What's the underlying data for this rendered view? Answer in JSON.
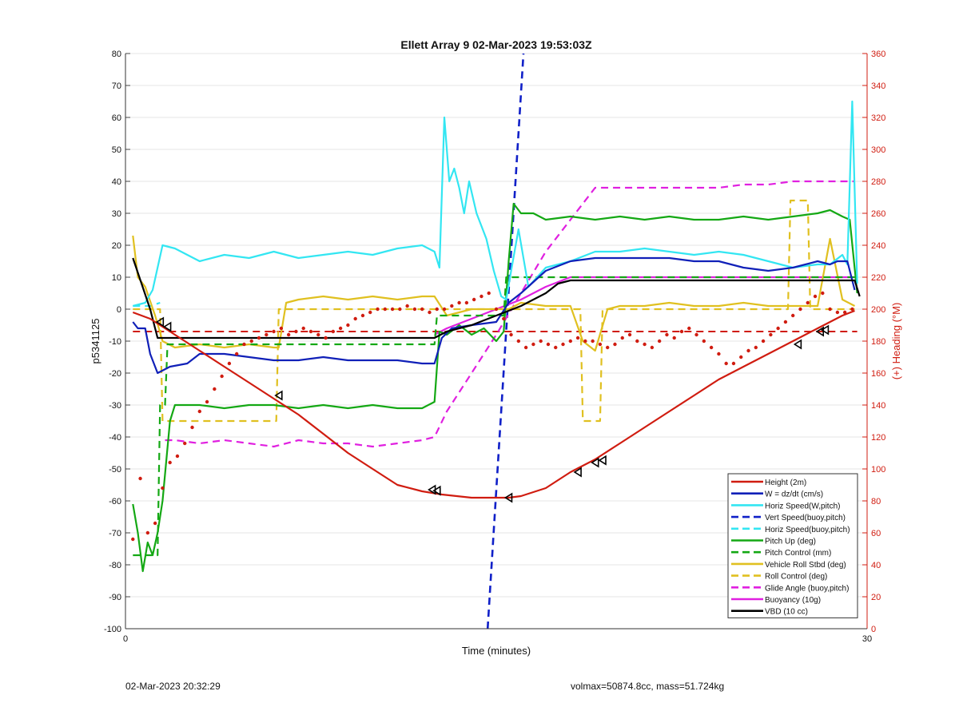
{
  "chart_data": {
    "type": "line",
    "title": "Ellett Array 9 02-Mar-2023 19:53:03Z",
    "xlabel": "Time (minutes)",
    "ylabel": "p5341125",
    "y2label": "(+) Heading (°M)",
    "xlim": [
      0,
      30
    ],
    "ylim": [
      -100,
      80
    ],
    "y2lim": [
      0,
      360
    ],
    "xticks": [
      "0",
      "30"
    ],
    "yticks": [
      "-100",
      "-90",
      "-80",
      "-70",
      "-60",
      "-50",
      "-40",
      "-30",
      "-20",
      "-10",
      "0",
      "10",
      "20",
      "30",
      "40",
      "50",
      "60",
      "70",
      "80"
    ],
    "y2ticks": [
      "0",
      "20",
      "40",
      "60",
      "80",
      "100",
      "120",
      "140",
      "160",
      "180",
      "200",
      "220",
      "240",
      "260",
      "280",
      "300",
      "320",
      "340",
      "360"
    ],
    "grid": true,
    "legend_position": "bottom-right",
    "colors": {
      "height": "#d01c10",
      "w": "#1020b8",
      "horiz_w": "#33e6f2",
      "vert_buoy": "#1020c8",
      "horiz_buoy": "#33e6f2",
      "pitch": "#14a814",
      "pitch_control": "#14a814",
      "roll": "#e0c020",
      "roll_control": "#e0c020",
      "glide": "#e020e0",
      "buoyancy": "#e020e0",
      "vbd": "#000000",
      "right_axis": "#d01c10"
    },
    "series": [
      {
        "name": "Height (2m)",
        "color": "#d01c10",
        "dash": false,
        "width": 2.2,
        "x": [
          0.3,
          1,
          2,
          3,
          4,
          5,
          6,
          7,
          8,
          9,
          10,
          11,
          12,
          12.8,
          14,
          15,
          15.5,
          16,
          17,
          18,
          19,
          20,
          21,
          22,
          23,
          24,
          25,
          26,
          27,
          28,
          29,
          29.5
        ],
        "y": [
          -1,
          -3,
          -8,
          -13,
          -18,
          -23,
          -28,
          -33,
          -39,
          -45,
          -50,
          -55,
          -57,
          -58,
          -59,
          -59,
          -59,
          -58.5,
          -56,
          -51,
          -47,
          -42,
          -37,
          -32,
          -27,
          -22,
          -18,
          -14,
          -10,
          -6,
          -2,
          -0.5
        ]
      },
      {
        "name": "W = dz/dt (cm/s)",
        "color": "#1020b8",
        "dash": false,
        "width": 2.2,
        "x": [
          0.3,
          0.5,
          0.8,
          1,
          1.3,
          1.8,
          2.5,
          3,
          4,
          5,
          6,
          7,
          8,
          9,
          10,
          11,
          12,
          12.5,
          12.8,
          13.2,
          14,
          15,
          15.5,
          16,
          17,
          18,
          19,
          20,
          21,
          22,
          23,
          24,
          25,
          26,
          27,
          28,
          28.5,
          28.8,
          29.2,
          29.5
        ],
        "y": [
          -4,
          -6,
          -6,
          -14,
          -20,
          -18,
          -17,
          -14,
          -14,
          -15,
          -16,
          -16,
          -15,
          -16,
          -16,
          -16,
          -17,
          -17,
          -9,
          -6,
          -5,
          -4,
          2,
          5,
          12,
          15,
          16,
          16,
          16,
          16,
          15,
          15,
          13,
          12,
          13,
          15,
          14,
          15,
          15,
          6
        ]
      },
      {
        "name": "Horiz Speed(W,pitch)",
        "color": "#33e6f2",
        "dash": false,
        "width": 2.2,
        "x": [
          0.3,
          0.8,
          1.1,
          1.5,
          2,
          3,
          4,
          5,
          6,
          7,
          8,
          9,
          10,
          11,
          12,
          12.5,
          12.7,
          12.9,
          13.1,
          13.3,
          13.5,
          13.7,
          13.9,
          14.2,
          14.6,
          14.9,
          15.2,
          15.4,
          15.6,
          15.9,
          16.3,
          17,
          18,
          19,
          20,
          21,
          22,
          23,
          24,
          25,
          26,
          27,
          28,
          28.5,
          29,
          29.2,
          29.4,
          29.6
        ],
        "y": [
          1,
          2,
          6,
          20,
          19,
          15,
          17,
          16,
          18,
          16,
          17,
          18,
          17,
          19,
          20,
          18,
          13,
          60,
          40,
          44,
          38,
          30,
          40,
          30,
          22,
          12,
          4,
          3,
          12,
          25,
          7,
          13,
          15,
          18,
          18,
          19,
          18,
          17,
          18,
          17,
          15,
          13,
          14,
          14,
          17,
          14,
          65,
          8
        ]
      },
      {
        "name": "Vert Speed(buoy,pitch)",
        "color": "#1020c8",
        "dash": true,
        "width": 2.6,
        "x": [
          14.65,
          16.1
        ],
        "y": [
          -100,
          80
        ]
      },
      {
        "name": "Horiz Speed(buoy,pitch)",
        "color": "#33e6f2",
        "dash": true,
        "width": 2.2,
        "x": [
          0.3,
          1,
          1.4
        ],
        "y": [
          1,
          1,
          2
        ]
      },
      {
        "name": "Pitch Up (deg)",
        "color": "#14a814",
        "dash": false,
        "width": 2.2,
        "x": [
          0.3,
          0.5,
          0.7,
          0.9,
          1.1,
          1.3,
          1.5,
          1.8,
          2,
          3,
          4,
          5,
          6,
          7,
          8,
          9,
          10,
          11,
          12,
          12.5,
          12.7,
          13,
          13.5,
          14,
          14.5,
          15,
          15.3,
          15.5,
          15.7,
          16,
          16.5,
          17,
          18,
          19,
          20,
          21,
          22,
          23,
          24,
          25,
          26,
          27,
          28,
          28.5,
          29,
          29.3,
          29.6
        ],
        "y": [
          -61,
          -70,
          -82,
          -73,
          -77,
          -70,
          -60,
          -35,
          -30,
          -30,
          -31,
          -30,
          -30,
          -31,
          -30,
          -31,
          -30,
          -31,
          -31,
          -29,
          -7,
          -8,
          -5,
          -8,
          -6,
          -10,
          -7,
          15,
          33,
          30,
          30,
          28,
          29,
          28,
          29,
          28,
          29,
          28,
          28,
          29,
          28,
          29,
          30,
          31,
          29,
          28,
          5
        ]
      },
      {
        "name": "Pitch Control (mm)",
        "color": "#14a814",
        "dash": true,
        "width": 2.2,
        "x": [
          0.3,
          1.3,
          1.4,
          1.6,
          1.7,
          12.5,
          12.6,
          15.3,
          15.4,
          29.5
        ],
        "y": [
          -77,
          -77,
          -30,
          -30,
          -11,
          -11,
          -2,
          -2,
          10,
          10
        ]
      },
      {
        "name": "Vehicle Roll Stbd (deg)",
        "color": "#e0c020",
        "dash": false,
        "width": 2.2,
        "x": [
          0.3,
          0.5,
          0.8,
          1.2,
          1.5,
          2,
          3,
          4,
          5,
          6,
          6.2,
          6.5,
          7,
          8,
          9,
          10,
          11,
          12,
          12.5,
          13,
          14,
          15,
          15.5,
          16,
          17,
          18,
          18.5,
          19,
          19.5,
          20,
          21,
          22,
          23,
          24,
          25,
          26,
          27,
          28,
          28.5,
          29,
          29.5
        ],
        "y": [
          23,
          10,
          7,
          -2,
          -10,
          -12,
          -11,
          -12,
          -11,
          -12,
          -12,
          2,
          3,
          4,
          3,
          4,
          3,
          4,
          4,
          -2,
          0,
          0,
          0,
          2,
          1,
          1,
          -10,
          -13,
          0,
          1,
          1,
          2,
          1,
          1,
          2,
          1,
          1,
          1,
          22,
          3,
          1
        ]
      },
      {
        "name": "Roll Control (deg)",
        "color": "#e0c020",
        "dash": true,
        "width": 2.2,
        "x": [
          0.3,
          1.4,
          1.5,
          6.1,
          6.2,
          12.5,
          12.6,
          18.4,
          18.5,
          19.2,
          19.3,
          26.8,
          26.9,
          27.6,
          27.7,
          29.5
        ],
        "y": [
          0,
          0,
          -35,
          -35,
          0,
          0,
          0,
          0,
          -35,
          -35,
          0,
          0,
          34,
          34,
          0,
          0
        ]
      },
      {
        "name": "Glide Angle (buoy,pitch)",
        "color": "#e020e0",
        "dash": true,
        "width": 2.2,
        "x": [
          1.6,
          2,
          3,
          4,
          5,
          6,
          7,
          8,
          9,
          10,
          11,
          12,
          12.5,
          13,
          14,
          15,
          16,
          17,
          18,
          19,
          20,
          21,
          22,
          23,
          24,
          25,
          26,
          27,
          28,
          29,
          29.5
        ],
        "y": [
          -41,
          -41,
          -42,
          -41,
          -42,
          -43,
          -41,
          -42,
          -42,
          -43,
          -42,
          -41,
          -40,
          -32,
          -20,
          -8,
          5,
          18,
          28,
          38,
          38,
          38,
          38,
          38,
          38,
          39,
          39,
          40,
          40,
          40,
          40
        ]
      },
      {
        "name": "Buoyancy (10g)",
        "color": "#e020e0",
        "dash": false,
        "width": 2.2,
        "x": [
          12.5,
          13,
          14,
          15,
          16,
          17,
          18,
          18.3,
          29.5
        ],
        "y": [
          -8,
          -6,
          -3,
          0,
          3,
          7,
          10,
          10,
          10
        ]
      },
      {
        "name": "VBD (10 cc)",
        "color": "#000000",
        "dash": false,
        "width": 2.2,
        "x": [
          0.3,
          1,
          1.3,
          12.5,
          13,
          14,
          15,
          16,
          17,
          17.5,
          18,
          29.5,
          29.7
        ],
        "y": [
          16,
          0,
          -9,
          -9,
          -7,
          -5,
          -2,
          1,
          5,
          8,
          9,
          9,
          4
        ]
      }
    ],
    "ref_lines": {
      "color": "#d01c10",
      "dash": true,
      "x": [
        0.3,
        29.6
      ],
      "y": [
        -7,
        -7
      ]
    },
    "heading_dots": {
      "color": "#d01c10",
      "axis": "right",
      "x": [
        0.3,
        0.6,
        0.9,
        1.2,
        1.5,
        1.8,
        2.1,
        2.4,
        2.7,
        3,
        3.3,
        3.6,
        3.9,
        4.2,
        4.5,
        4.8,
        5.1,
        5.4,
        5.7,
        6,
        6.3,
        6.6,
        6.9,
        7.2,
        7.5,
        7.8,
        8.1,
        8.4,
        8.7,
        9,
        9.3,
        9.6,
        9.9,
        10.2,
        10.5,
        10.8,
        11.1,
        11.4,
        11.7,
        12,
        12.3,
        12.6,
        12.9,
        13.2,
        13.5,
        13.8,
        14.1,
        14.4,
        14.7,
        15,
        15.3,
        15.6,
        15.9,
        16.2,
        16.5,
        16.8,
        17.1,
        17.4,
        17.7,
        18,
        18.3,
        18.6,
        18.9,
        19.2,
        19.5,
        19.8,
        20.1,
        20.4,
        20.7,
        21,
        21.3,
        21.6,
        21.9,
        22.2,
        22.5,
        22.8,
        23.1,
        23.4,
        23.7,
        24,
        24.3,
        24.6,
        24.9,
        25.2,
        25.5,
        25.8,
        26.1,
        26.4,
        26.7,
        27,
        27.3,
        27.6,
        27.9,
        28.2,
        28.5,
        28.8,
        29.1,
        29.4
      ],
      "y": [
        56,
        94,
        60,
        66,
        88,
        104,
        108,
        116,
        126,
        136,
        142,
        150,
        158,
        166,
        172,
        178,
        180,
        182,
        184,
        186,
        188,
        184,
        186,
        188,
        186,
        184,
        182,
        186,
        188,
        190,
        194,
        196,
        198,
        200,
        200,
        200,
        200,
        202,
        200,
        200,
        198,
        200,
        200,
        202,
        204,
        204,
        206,
        208,
        210,
        200,
        194,
        184,
        180,
        176,
        178,
        180,
        178,
        176,
        178,
        180,
        182,
        180,
        180,
        178,
        176,
        178,
        182,
        184,
        180,
        178,
        176,
        180,
        184,
        182,
        186,
        188,
        184,
        180,
        176,
        172,
        166,
        166,
        170,
        174,
        176,
        180,
        184,
        188,
        192,
        196,
        200,
        204,
        208,
        210,
        200,
        198,
        198,
        200
      ]
    },
    "markers": {
      "color": "#000000",
      "x": [
        1.4,
        1.7,
        6.2,
        12.4,
        12.6,
        15.5,
        18.3,
        19,
        19.3,
        27.2,
        28.1,
        28.3
      ],
      "y": [
        -4,
        -5.5,
        -27,
        -56.5,
        -56.8,
        -59,
        -51,
        -48,
        -47.3,
        -11,
        -7,
        -6.5
      ]
    }
  },
  "footer": {
    "left": "02-Mar-2023 20:32:29",
    "right": "volmax=50874.8cc, mass=51.724kg"
  }
}
